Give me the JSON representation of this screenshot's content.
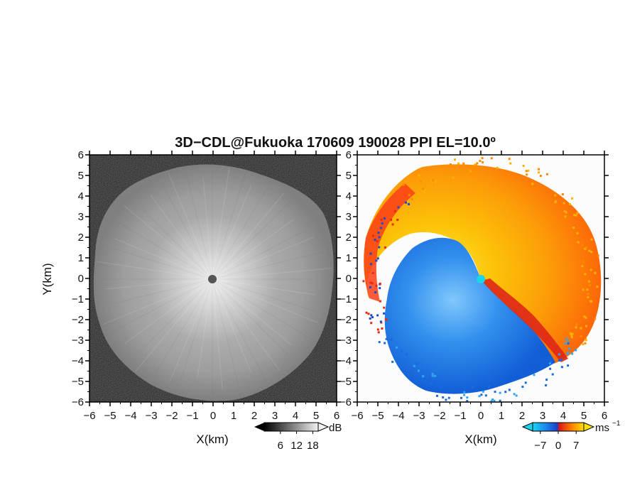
{
  "title": "3D−CDL@Fukuoka 170609 190028 PPI EL=10.0º",
  "chart_data": [
    {
      "type": "heatmap",
      "name": "reflectivity",
      "xlabel": "X(km)",
      "ylabel": "Y(km)",
      "xlim": [
        -6,
        6
      ],
      "ylim": [
        -6,
        6
      ],
      "xticks": [
        -6,
        -5,
        -4,
        -3,
        -2,
        -1,
        0,
        1,
        2,
        3,
        4,
        5,
        6
      ],
      "yticks": [
        -6,
        -5,
        -4,
        -3,
        -2,
        -1,
        0,
        1,
        2,
        3,
        4,
        5,
        6
      ],
      "tick_labels": [
        "−6",
        "−5",
        "−4",
        "−3",
        "−2",
        "−1",
        "0",
        "1",
        "2",
        "3",
        "4",
        "5",
        "6"
      ],
      "colormap": "grayscale",
      "colorbar": {
        "unit": "dB",
        "tick_labels": [
          "6",
          "12",
          "18"
        ],
        "ticks": [
          6,
          12,
          18
        ]
      }
    },
    {
      "type": "heatmap",
      "name": "doppler-velocity",
      "xlabel": "X(km)",
      "ylabel": "",
      "xlim": [
        -6,
        6
      ],
      "ylim": [
        -6,
        6
      ],
      "xticks": [
        -6,
        -5,
        -4,
        -3,
        -2,
        -1,
        0,
        1,
        2,
        3,
        4,
        5,
        6
      ],
      "yticks": [
        -6,
        -5,
        -4,
        -3,
        -2,
        -1,
        0,
        1,
        2,
        3,
        4,
        5,
        6
      ],
      "tick_labels": [
        "−6",
        "−5",
        "−4",
        "−3",
        "−2",
        "−1",
        "0",
        "1",
        "2",
        "3",
        "4",
        "5",
        "6"
      ],
      "colormap": "blue-cyan-red-orange-yellow",
      "colorbar": {
        "unit": "ms",
        "unit_exponent": "−1",
        "tick_labels": [
          "−7",
          "0",
          "7"
        ],
        "ticks": [
          -7,
          0,
          7
        ]
      }
    }
  ],
  "colors": {
    "background": "#ffffff",
    "dark_bg": "#1e1e1e",
    "negative_velocity": "#1e7ee8",
    "positive_velocity": "#ff6a00",
    "center_marker_left": "#555555",
    "center_marker_right": "#19d6e8"
  }
}
